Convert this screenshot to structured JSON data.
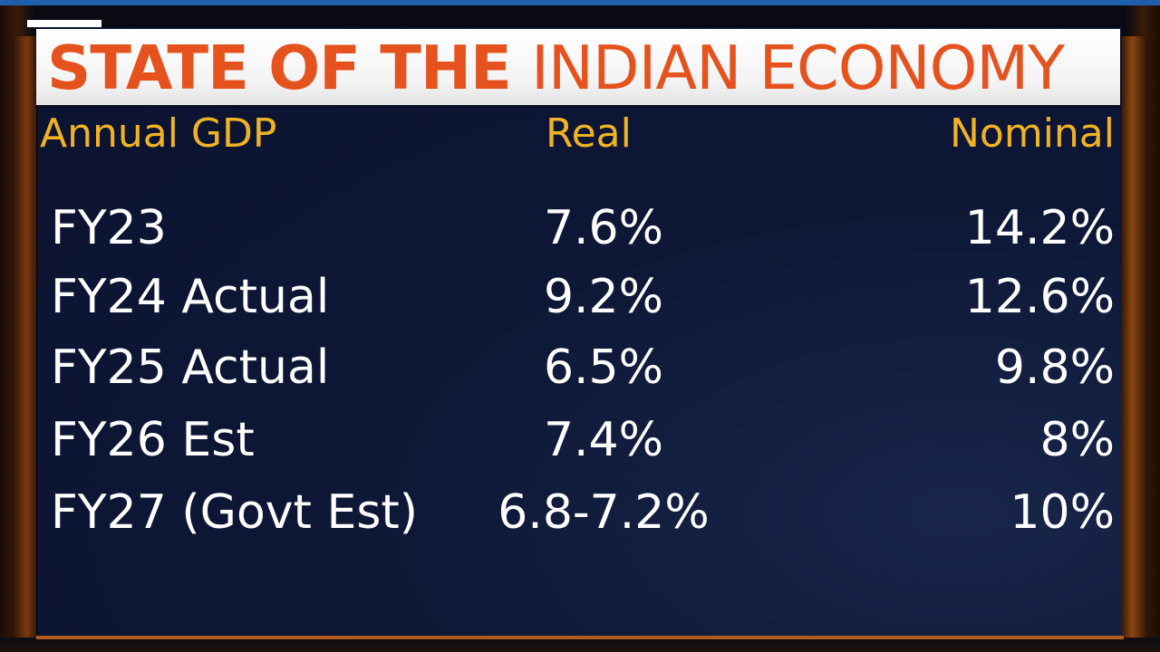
{
  "title": {
    "bold_part": "STATE OF THE",
    "light_part": "INDIAN ECONOMY"
  },
  "colors": {
    "title_text": "#e5521e",
    "header_text": "#f0b323",
    "body_text": "#ffffff",
    "panel_background": "#0e1736",
    "frame_accent": "#b35b1b"
  },
  "table": {
    "headers": {
      "label": "Annual GDP",
      "real": "Real",
      "nominal": "Nominal"
    },
    "rows": [
      {
        "label": "FY23",
        "real": "7.6%",
        "nominal": "14.2%"
      },
      {
        "label": "FY24 Actual",
        "real": "9.2%",
        "nominal": "12.6%"
      },
      {
        "label": "FY25 Actual",
        "real": "6.5%",
        "nominal": "9.8%"
      },
      {
        "label": "FY26 Est",
        "real": "7.4%",
        "nominal": "8%"
      },
      {
        "label": "FY27 (Govt Est)",
        "real": "6.8-7.2%",
        "nominal": "10%"
      }
    ]
  }
}
